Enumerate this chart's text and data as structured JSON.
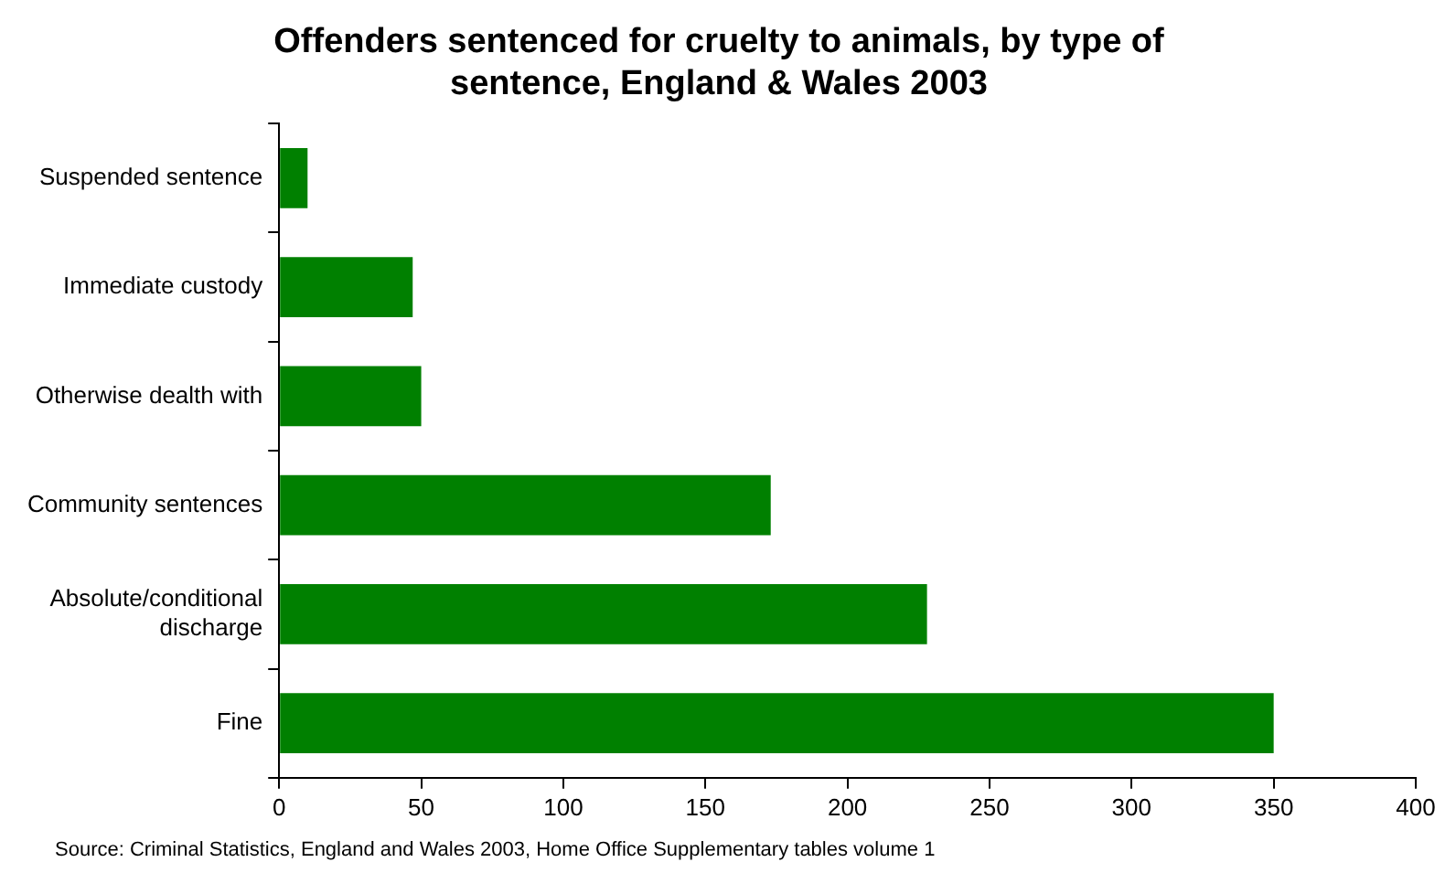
{
  "chart_data": {
    "type": "bar",
    "orientation": "horizontal",
    "title": "Offenders sentenced for cruelty to animals, by type of sentence, England & Wales 2003",
    "categories": [
      "Suspended sentence",
      "Immediate custody",
      "Otherwise dealth with",
      "Community sentences",
      "Absolute/conditional discharge",
      "Fine"
    ],
    "values": [
      10,
      47,
      50,
      173,
      228,
      350
    ],
    "color": "#008000",
    "xlim": [
      0,
      400
    ],
    "xticks": [
      0,
      50,
      100,
      150,
      200,
      250,
      300,
      350,
      400
    ],
    "grid": false,
    "legend": false,
    "annotations": [
      "Source: Criminal Statistics, England and Wales 2003, Home Office  Supplementary tables volume 1"
    ]
  }
}
